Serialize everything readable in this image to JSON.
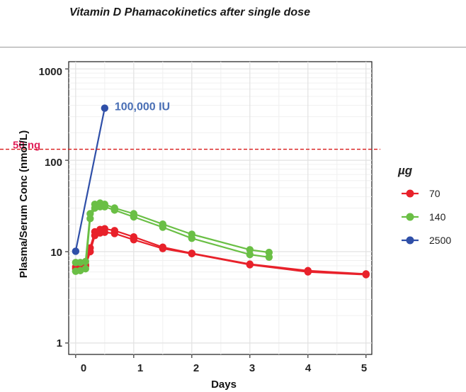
{
  "page": {
    "title": "Vitamin D Phamacokinetics after single dose"
  },
  "chart_data": {
    "type": "line",
    "title": "Vitamin D Phamacokinetics after single dose",
    "xlabel": "Days",
    "ylabel": "Plasma/Serum Conc (nmol/L)",
    "yscale": "log",
    "xlim": [
      -0.12,
      5.1
    ],
    "ylim": [
      0.75,
      1200
    ],
    "x_ticks": [
      "0",
      "1",
      "2",
      "3",
      "4",
      "5"
    ],
    "y_ticks": [
      "1",
      "10",
      "100",
      "1000"
    ],
    "legend_title": "µg",
    "legend_position": "right",
    "series": [
      {
        "name": "70",
        "color": "#e8212a",
        "points": [
          [
            0,
            6.8
          ],
          [
            0.08,
            6.9
          ],
          [
            0.17,
            7.2
          ],
          [
            0.25,
            11
          ],
          [
            0.33,
            16.5
          ],
          [
            0.42,
            17.5
          ],
          [
            0.5,
            17.8
          ],
          [
            0.67,
            17
          ],
          [
            1.0,
            14.5
          ],
          [
            1.5,
            11.2
          ],
          [
            2.0,
            9.6
          ],
          [
            3.0,
            7.3
          ],
          [
            4.0,
            6.2
          ],
          [
            5.0,
            5.7
          ]
        ]
      },
      {
        "name": "70",
        "color": "#e8212a",
        "points": [
          [
            0,
            6.5
          ],
          [
            0.08,
            6.6
          ],
          [
            0.17,
            6.9
          ],
          [
            0.25,
            10
          ],
          [
            0.33,
            15
          ],
          [
            0.42,
            16
          ],
          [
            0.5,
            16.3
          ],
          [
            0.67,
            15.8
          ],
          [
            1.0,
            13.5
          ],
          [
            1.5,
            10.8
          ],
          [
            2.0,
            9.5
          ],
          [
            3.0,
            7.2
          ],
          [
            4.0,
            6.0
          ],
          [
            5.0,
            5.6
          ]
        ]
      },
      {
        "name": "140",
        "color": "#6abf45",
        "points": [
          [
            0,
            7.6
          ],
          [
            0.08,
            7.6
          ],
          [
            0.17,
            7.8
          ],
          [
            0.25,
            26
          ],
          [
            0.33,
            33
          ],
          [
            0.42,
            34
          ],
          [
            0.5,
            33
          ],
          [
            0.67,
            30
          ],
          [
            1.0,
            26
          ],
          [
            1.5,
            20
          ],
          [
            2.0,
            15.5
          ],
          [
            3.0,
            10.5
          ],
          [
            3.33,
            9.8
          ]
        ]
      },
      {
        "name": "140",
        "color": "#6abf45",
        "points": [
          [
            0,
            6.1
          ],
          [
            0.08,
            6.2
          ],
          [
            0.17,
            6.5
          ],
          [
            0.25,
            23
          ],
          [
            0.33,
            30
          ],
          [
            0.42,
            31
          ],
          [
            0.5,
            31
          ],
          [
            0.67,
            28.5
          ],
          [
            1.0,
            24
          ],
          [
            1.5,
            18.5
          ],
          [
            2.0,
            14
          ],
          [
            3.0,
            9.3
          ],
          [
            3.33,
            8.7
          ]
        ]
      },
      {
        "name": "2500",
        "color": "#2f4fa8",
        "points": [
          [
            0,
            10.1
          ],
          [
            0.5,
            372
          ]
        ]
      }
    ],
    "annotations": [
      {
        "text": "100,000 IU",
        "x": 0.5,
        "y": 372,
        "color": "#4a6fb5"
      },
      {
        "text": "50 ng",
        "y": 132,
        "color": "#e0225a",
        "line_color": "#d81818",
        "line_style": "dashed"
      }
    ]
  }
}
